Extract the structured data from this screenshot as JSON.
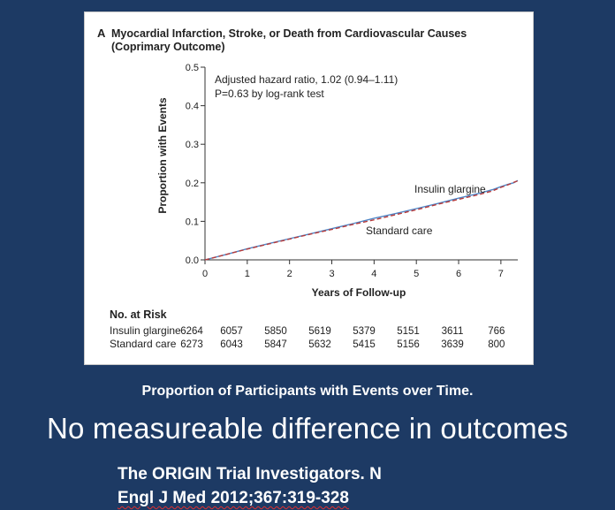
{
  "chart_data": {
    "type": "line",
    "panel_letter": "A",
    "title": "Myocardial Infarction, Stroke, or Death from Cardiovascular Causes",
    "subtitle": "(Coprimary Outcome)",
    "xlabel": "Years of Follow-up",
    "ylabel": "Proportion with Events",
    "xlim": [
      0,
      7.4
    ],
    "ylim": [
      0,
      0.5
    ],
    "xticks": [
      "0",
      "1",
      "2",
      "3",
      "4",
      "5",
      "6",
      "7"
    ],
    "yticks": [
      "0.0",
      "0.1",
      "0.2",
      "0.3",
      "0.4",
      "0.5"
    ],
    "annotations": [
      "Adjusted hazard ratio, 1.02 (0.94–1.11)",
      "P=0.63 by log-rank test"
    ],
    "series": [
      {
        "name": "Insulin glargine",
        "color": "#4f86c6",
        "dash": "solid",
        "x": [
          0,
          0.5,
          1,
          1.5,
          2,
          2.5,
          3,
          3.5,
          4,
          4.5,
          5,
          5.5,
          6,
          6.5,
          6.8,
          7,
          7.2,
          7.3,
          7.4
        ],
        "y": [
          0,
          0.014,
          0.029,
          0.042,
          0.055,
          0.068,
          0.081,
          0.094,
          0.108,
          0.12,
          0.133,
          0.146,
          0.16,
          0.173,
          0.182,
          0.19,
          0.197,
          0.2,
          0.206
        ]
      },
      {
        "name": "Standard care",
        "color": "#b83a3a",
        "dash": "dashed",
        "x": [
          0,
          0.5,
          1,
          1.5,
          2,
          2.5,
          3,
          3.5,
          4,
          4.5,
          5,
          5.5,
          6,
          6.5,
          6.8,
          7,
          7.2,
          7.3,
          7.4
        ],
        "y": [
          0,
          0.014,
          0.028,
          0.041,
          0.054,
          0.067,
          0.079,
          0.092,
          0.104,
          0.117,
          0.13,
          0.144,
          0.157,
          0.17,
          0.179,
          0.188,
          0.196,
          0.201,
          0.205
        ]
      }
    ],
    "series_labels": {
      "insulin": "Insulin glargine",
      "standard": "Standard care"
    },
    "risk_table": {
      "title": "No. at Risk",
      "rows": [
        {
          "label": "Insulin glargine",
          "values": [
            "6264",
            "6057",
            "5850",
            "5619",
            "5379",
            "5151",
            "3611",
            "766"
          ]
        },
        {
          "label": "Standard care",
          "values": [
            "6273",
            "6043",
            "5847",
            "5632",
            "5415",
            "5156",
            "3639",
            "800"
          ]
        }
      ]
    }
  },
  "caption": "Proportion of Participants with Events over Time.",
  "headline": "No measureable difference in outcomes",
  "citation": {
    "line1": "The ORIGIN Trial Investigators. N",
    "line2": "Engl J Med 2012;367:319-328"
  }
}
